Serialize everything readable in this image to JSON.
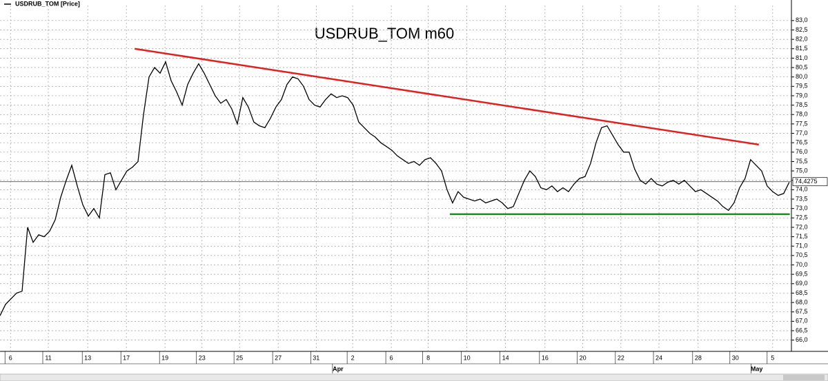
{
  "chart_data": {
    "type": "line",
    "title": "USDRUB_TOM m60",
    "legend_label": "USDRUB_TOM [Price]",
    "series": [
      {
        "name": "USDRUB_TOM [Price]",
        "color": "#000000",
        "values": [
          67.3,
          67.9,
          68.2,
          68.5,
          68.6,
          72.0,
          71.2,
          71.6,
          71.5,
          71.8,
          72.4,
          73.6,
          74.5,
          75.3,
          74.2,
          73.2,
          72.6,
          73.0,
          72.5,
          74.8,
          74.9,
          74.0,
          74.5,
          75.0,
          75.2,
          75.5,
          78.0,
          80.0,
          80.5,
          80.2,
          80.8,
          79.8,
          79.2,
          78.5,
          79.6,
          80.2,
          80.7,
          80.2,
          79.6,
          79.0,
          78.6,
          78.8,
          78.3,
          77.5,
          78.9,
          78.4,
          77.6,
          77.4,
          77.3,
          77.8,
          78.4,
          78.8,
          79.6,
          80.0,
          79.9,
          79.5,
          78.8,
          78.5,
          78.4,
          78.8,
          79.1,
          78.9,
          79.0,
          78.9,
          78.5,
          77.6,
          77.3,
          77.0,
          76.8,
          76.5,
          76.3,
          76.1,
          75.8,
          75.6,
          75.4,
          75.5,
          75.3,
          75.6,
          75.7,
          75.4,
          75.0,
          74.0,
          73.3,
          73.9,
          73.6,
          73.5,
          73.4,
          73.5,
          73.3,
          73.4,
          73.5,
          73.3,
          73.0,
          73.1,
          73.8,
          74.5,
          75.0,
          74.7,
          74.1,
          74.0,
          74.2,
          73.9,
          74.1,
          73.9,
          74.3,
          74.6,
          74.7,
          75.4,
          76.5,
          77.3,
          77.4,
          76.9,
          76.4,
          76.0,
          76.0,
          75.1,
          74.5,
          74.3,
          74.6,
          74.3,
          74.2,
          74.4,
          74.5,
          74.3,
          74.5,
          74.2,
          73.9,
          74.0,
          73.8,
          73.6,
          73.4,
          73.1,
          72.9,
          73.3,
          74.1,
          74.6,
          75.6,
          75.3,
          75.0,
          74.2,
          73.9,
          73.7,
          73.8,
          74.4
        ]
      }
    ],
    "last_price": {
      "value": 74.4275,
      "label": "74,4275"
    },
    "trend_lines": [
      {
        "color": "#e02020",
        "x": [
          24.4,
          137.5
        ],
        "y": [
          81.5,
          76.4
        ]
      },
      {
        "color": "#1a8a1a",
        "x": [
          81.5,
          143.1
        ],
        "y": [
          72.7,
          72.7
        ]
      }
    ],
    "xlim": [
      0,
      143.4
    ],
    "xticks": [
      {
        "value": 1.9,
        "label": "6"
      },
      {
        "value": 8.75,
        "label": "11"
      },
      {
        "value": 15.9,
        "label": "13"
      },
      {
        "value": 22.9,
        "label": "17"
      },
      {
        "value": 29.9,
        "label": "19"
      },
      {
        "value": 36.6,
        "label": "23"
      },
      {
        "value": 43.4,
        "label": "25"
      },
      {
        "value": 50.4,
        "label": "27"
      },
      {
        "value": 57.3,
        "label": "31"
      },
      {
        "value": 63.9,
        "label": "2"
      },
      {
        "value": 70.9,
        "label": "6"
      },
      {
        "value": 77.6,
        "label": "8"
      },
      {
        "value": 84.6,
        "label": "10"
      },
      {
        "value": 91.6,
        "label": "14"
      },
      {
        "value": 98.75,
        "label": "16"
      },
      {
        "value": 105.6,
        "label": "20"
      },
      {
        "value": 112.5,
        "label": "22"
      },
      {
        "value": 119.4,
        "label": "24"
      },
      {
        "value": 126.5,
        "label": "28"
      },
      {
        "value": 133.25,
        "label": "30"
      },
      {
        "value": 140,
        "label": "5"
      }
    ],
    "month_labels": [
      {
        "value": 61.25,
        "label": "Apr"
      },
      {
        "value": 137.1,
        "label": "May"
      }
    ],
    "ylim": [
      65.4,
      83.8
    ],
    "yticks": [
      {
        "value": 66,
        "label": "66,0"
      },
      {
        "value": 66.5,
        "label": "66,5"
      },
      {
        "value": 67,
        "label": "67,0"
      },
      {
        "value": 67.5,
        "label": "67,5"
      },
      {
        "value": 68,
        "label": "68,0"
      },
      {
        "value": 68.5,
        "label": "68,5"
      },
      {
        "value": 69,
        "label": "69,0"
      },
      {
        "value": 69.5,
        "label": "69,5"
      },
      {
        "value": 70,
        "label": "70,0"
      },
      {
        "value": 70.5,
        "label": "70,5"
      },
      {
        "value": 71,
        "label": "71,0"
      },
      {
        "value": 71.5,
        "label": "71,5"
      },
      {
        "value": 72,
        "label": "72,0"
      },
      {
        "value": 72.5,
        "label": "72,5"
      },
      {
        "value": 73,
        "label": "73,0"
      },
      {
        "value": 73.5,
        "label": "73,5"
      },
      {
        "value": 74,
        "label": "74,0"
      },
      {
        "value": 74.5,
        "label": "74,5"
      },
      {
        "value": 75,
        "label": "75,0"
      },
      {
        "value": 75.5,
        "label": "75,5"
      },
      {
        "value": 76,
        "label": "76,0"
      },
      {
        "value": 76.5,
        "label": "76,5"
      },
      {
        "value": 77,
        "label": "77,0"
      },
      {
        "value": 77.5,
        "label": "77,5"
      },
      {
        "value": 78,
        "label": "78,0"
      },
      {
        "value": 78.5,
        "label": "78,5"
      },
      {
        "value": 79,
        "label": "79,0"
      },
      {
        "value": 79.5,
        "label": "79,5"
      },
      {
        "value": 80,
        "label": "80,0"
      },
      {
        "value": 80.5,
        "label": "80,5"
      },
      {
        "value": 81,
        "label": "81,0"
      },
      {
        "value": 81.5,
        "label": "81,5"
      },
      {
        "value": 82,
        "label": "82,0"
      },
      {
        "value": 82.5,
        "label": "82,5"
      },
      {
        "value": 83,
        "label": "83,0"
      }
    ],
    "grid": true
  }
}
